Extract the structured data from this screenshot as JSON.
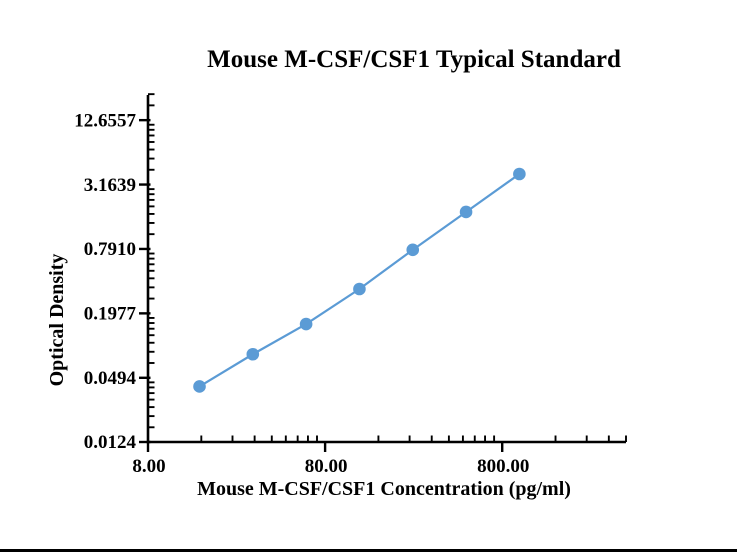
{
  "figure": {
    "background": "#ffffff",
    "bottom_border_color": "#000000"
  },
  "chart_data": {
    "type": "line",
    "title": "Mouse M-CSF/CSF1 Typical Standard",
    "xlabel": "Mouse M-CSF/CSF1 Concentration (pg/ml)",
    "ylabel": "Optical Density",
    "x_scale": "log",
    "y_scale": "log",
    "grid": false,
    "legend": false,
    "axis_color": "#000000",
    "series": [
      {
        "name": "Typical Standard",
        "marker": "circle",
        "color": "#5B9BD5",
        "x": [
          15.63,
          31.25,
          62.5,
          125,
          250,
          500,
          1000
        ],
        "y": [
          0.041,
          0.082,
          0.157,
          0.334,
          0.776,
          1.754,
          3.97
        ]
      }
    ],
    "x_axis": {
      "range": [
        8,
        4000
      ],
      "major_ticks": [
        {
          "value": 8,
          "label": "8.00"
        },
        {
          "value": 80,
          "label": "80.00"
        },
        {
          "value": 800,
          "label": "800.00"
        }
      ]
    },
    "y_axis": {
      "range": [
        0.0124,
        21.75
      ],
      "tick_ratio": 4,
      "major_ticks": [
        {
          "value": 0.0124,
          "label": "0.0124"
        },
        {
          "value": 0.0494,
          "label": "0.0494"
        },
        {
          "value": 0.1977,
          "label": "0.1977"
        },
        {
          "value": 0.791,
          "label": "0.7910"
        },
        {
          "value": 3.1639,
          "label": "3.1639"
        },
        {
          "value": 12.6557,
          "label": "12.6557"
        }
      ]
    }
  }
}
